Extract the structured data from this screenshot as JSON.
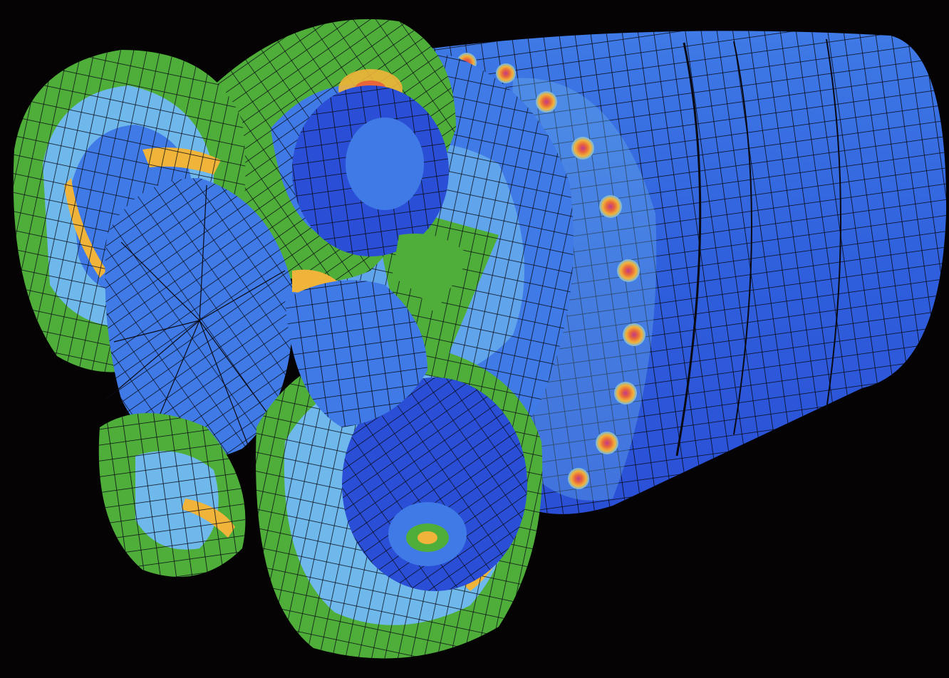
{
  "scene": {
    "subject": "fea-stress-mesh-render",
    "background_color": "#050304",
    "contour_palette": [
      "#2a4fd6",
      "#3f7ae6",
      "#6fb8ec",
      "#4fae3a",
      "#f0b43a",
      "#e8663a",
      "#c23a8a"
    ],
    "mesh_line_color": "#0a0a14"
  }
}
